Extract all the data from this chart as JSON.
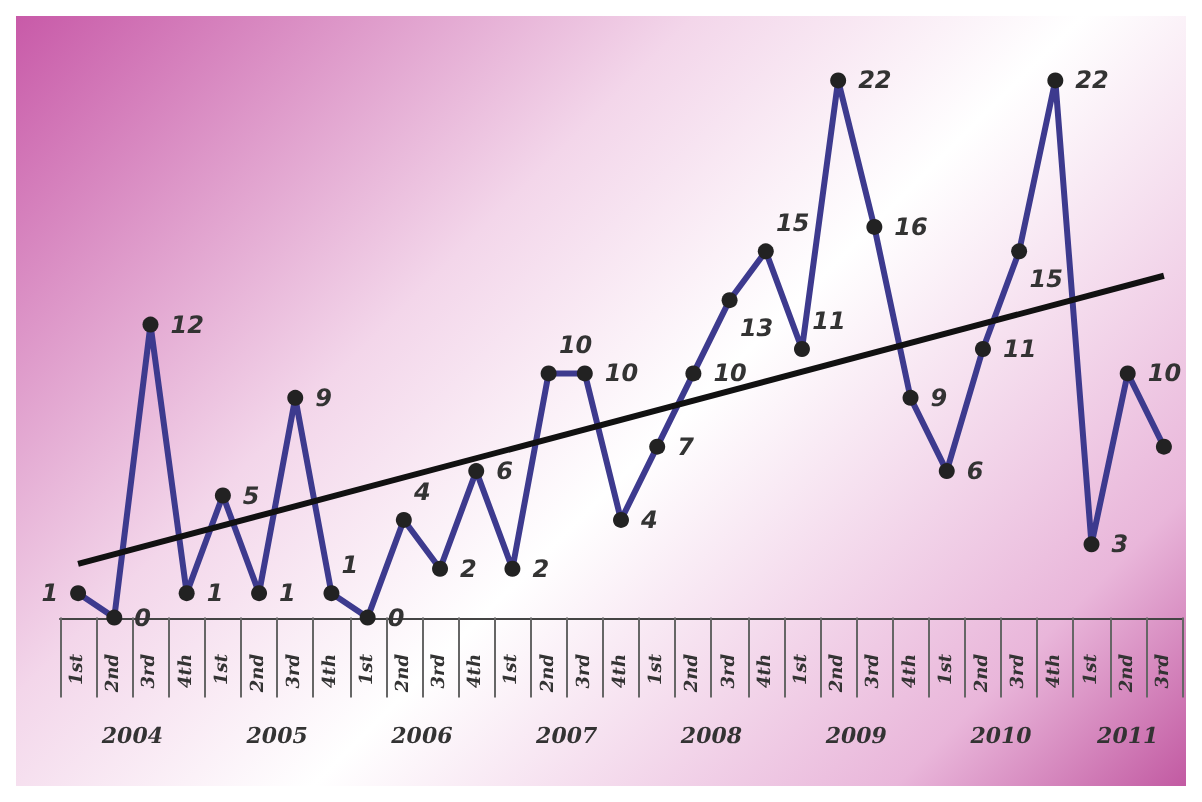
{
  "chart_data": {
    "type": "line",
    "categories": [
      "1st",
      "2nd",
      "3rd",
      "4th",
      "1st",
      "2nd",
      "3rd",
      "4th",
      "1st",
      "2nd",
      "3rd",
      "4th",
      "1st",
      "2nd",
      "3rd",
      "4th",
      "1st",
      "2nd",
      "3rd",
      "4th",
      "1st",
      "2nd",
      "3rd",
      "4th",
      "1st",
      "2nd",
      "3rd",
      "4th",
      "1st",
      "2nd",
      "3rd"
    ],
    "series": [
      {
        "color": "#3d3a8e",
        "values": [
          1,
          0,
          12,
          1,
          5,
          1,
          9,
          1,
          0,
          4,
          2,
          6,
          2,
          10,
          10,
          4,
          7,
          10,
          13,
          15,
          11,
          22,
          16,
          9,
          6,
          11,
          15,
          22,
          3,
          10,
          7
        ],
        "value_labels": [
          "1",
          "0",
          "12",
          "1",
          "5",
          "1",
          "9",
          "1",
          "0",
          "4",
          "2",
          "6",
          "2",
          "10",
          "10",
          "4",
          "7",
          "10",
          "13",
          "15",
          "11",
          "22",
          "16",
          "9",
          "6",
          "11",
          "15",
          "22",
          "3",
          "10",
          null
        ],
        "marker": "circle"
      },
      {
        "type": "line",
        "color": "#111111",
        "values": [
          2.2,
          null,
          null,
          null,
          null,
          null,
          null,
          null,
          null,
          null,
          null,
          null,
          null,
          null,
          null,
          null,
          null,
          null,
          null,
          null,
          null,
          null,
          null,
          null,
          null,
          null,
          null,
          null,
          null,
          null,
          14
        ],
        "marker": "none"
      }
    ],
    "annotations": [
      "2004",
      "2005",
      "2006",
      "2007",
      "2008",
      "2009",
      "2010",
      "2011"
    ],
    "grid": false,
    "line_style": "solid"
  }
}
